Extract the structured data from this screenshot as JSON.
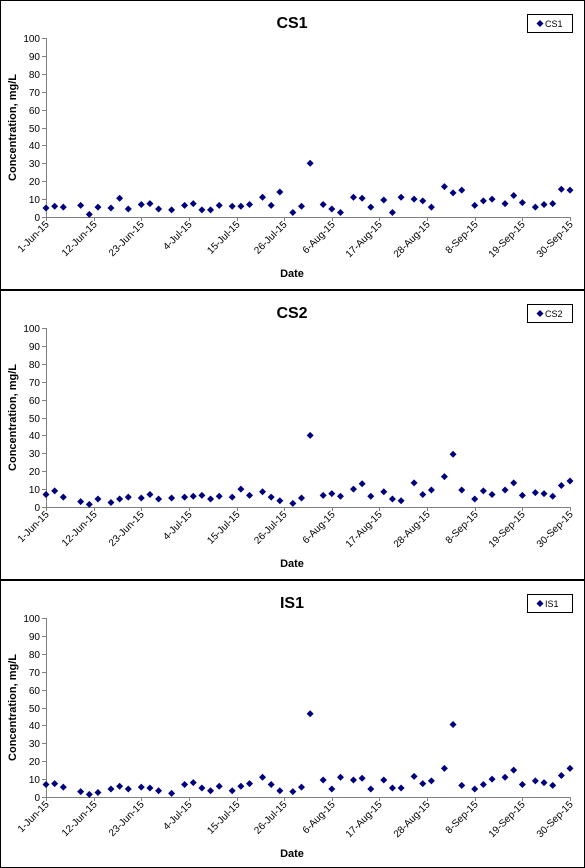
{
  "colors": {
    "marker": "#00007F",
    "frame": "#000000",
    "axis": "#808080"
  },
  "chart_data": [
    {
      "type": "scatter",
      "title": "CS1",
      "xlabel": "Date",
      "ylabel": "Concentration, mg/L",
      "legend": {
        "label": "CS1",
        "placement": "top-right"
      },
      "xlim": [
        "2015-06-01",
        "2015-09-30"
      ],
      "ylim": [
        0,
        100
      ],
      "y_ticks": [
        "0",
        "10",
        "20",
        "30",
        "40",
        "50",
        "60",
        "70",
        "80",
        "90",
        "100"
      ],
      "x_ticks": [
        "1-Jun-15",
        "12-Jun-15",
        "23-Jun-15",
        "4-Jul-15",
        "15-Jul-15",
        "26-Jul-15",
        "6-Aug-15",
        "17-Aug-15",
        "28-Aug-15",
        "8-Sep-15",
        "19-Sep-15",
        "30-Sep-15"
      ],
      "grid": false,
      "series": [
        {
          "name": "CS1",
          "x": [
            "2015-06-01",
            "2015-06-03",
            "2015-06-05",
            "2015-06-09",
            "2015-06-11",
            "2015-06-13",
            "2015-06-16",
            "2015-06-18",
            "2015-06-20",
            "2015-06-23",
            "2015-06-25",
            "2015-06-27",
            "2015-06-30",
            "2015-07-03",
            "2015-07-05",
            "2015-07-07",
            "2015-07-09",
            "2015-07-11",
            "2015-07-14",
            "2015-07-16",
            "2015-07-18",
            "2015-07-21",
            "2015-07-23",
            "2015-07-25",
            "2015-07-28",
            "2015-07-30",
            "2015-08-01",
            "2015-08-04",
            "2015-08-06",
            "2015-08-08",
            "2015-08-11",
            "2015-08-13",
            "2015-08-15",
            "2015-08-18",
            "2015-08-20",
            "2015-08-22",
            "2015-08-25",
            "2015-08-27",
            "2015-08-29",
            "2015-09-01",
            "2015-09-03",
            "2015-09-05",
            "2015-09-08",
            "2015-09-10",
            "2015-09-12",
            "2015-09-15",
            "2015-09-17",
            "2015-09-19",
            "2015-09-22",
            "2015-09-24",
            "2015-09-26",
            "2015-09-28",
            "2015-09-30"
          ],
          "y": [
            5,
            6,
            5.5,
            6.5,
            1.5,
            5.5,
            5,
            10.5,
            4.5,
            7,
            7.5,
            4.5,
            4,
            6.5,
            7.5,
            4,
            4,
            6.5,
            6,
            6,
            7,
            11,
            6.5,
            14,
            2.5,
            6,
            30,
            7,
            4.5,
            2.5,
            11,
            10.5,
            5.5,
            9.5,
            2.5,
            11,
            10,
            9,
            5.5,
            17,
            13.5,
            15,
            6.5,
            9,
            10,
            7.5,
            12,
            8,
            5.5,
            7,
            7.5,
            15.5,
            15
          ]
        }
      ]
    },
    {
      "type": "scatter",
      "title": "CS2",
      "xlabel": "Date",
      "ylabel": "Concentration, mg/L",
      "legend": {
        "label": "CS2",
        "placement": "top-right"
      },
      "xlim": [
        "2015-06-01",
        "2015-09-30"
      ],
      "ylim": [
        0,
        100
      ],
      "y_ticks": [
        "0",
        "10",
        "20",
        "30",
        "40",
        "50",
        "60",
        "70",
        "80",
        "90",
        "100"
      ],
      "x_ticks": [
        "1-Jun-15",
        "12-Jun-15",
        "23-Jun-15",
        "4-Jul-15",
        "15-Jul-15",
        "26-Jul-15",
        "6-Aug-15",
        "17-Aug-15",
        "28-Aug-15",
        "8-Sep-15",
        "19-Sep-15",
        "30-Sep-15"
      ],
      "grid": false,
      "series": [
        {
          "name": "CS2",
          "x": [
            "2015-06-01",
            "2015-06-03",
            "2015-06-05",
            "2015-06-09",
            "2015-06-11",
            "2015-06-13",
            "2015-06-16",
            "2015-06-18",
            "2015-06-20",
            "2015-06-23",
            "2015-06-25",
            "2015-06-27",
            "2015-06-30",
            "2015-07-03",
            "2015-07-05",
            "2015-07-07",
            "2015-07-09",
            "2015-07-11",
            "2015-07-14",
            "2015-07-16",
            "2015-07-18",
            "2015-07-21",
            "2015-07-23",
            "2015-07-25",
            "2015-07-28",
            "2015-07-30",
            "2015-08-01",
            "2015-08-04",
            "2015-08-06",
            "2015-08-08",
            "2015-08-11",
            "2015-08-13",
            "2015-08-15",
            "2015-08-18",
            "2015-08-20",
            "2015-08-22",
            "2015-08-25",
            "2015-08-27",
            "2015-08-29",
            "2015-09-01",
            "2015-09-03",
            "2015-09-05",
            "2015-09-08",
            "2015-09-10",
            "2015-09-12",
            "2015-09-15",
            "2015-09-17",
            "2015-09-19",
            "2015-09-22",
            "2015-09-24",
            "2015-09-26",
            "2015-09-28",
            "2015-09-30"
          ],
          "y": [
            7,
            9,
            5.5,
            3,
            1.5,
            4.5,
            2.5,
            4.5,
            5.5,
            5,
            7,
            4.5,
            5,
            5.5,
            6,
            6.5,
            4.5,
            6,
            5.5,
            10,
            6.5,
            8.5,
            5.5,
            3.5,
            2,
            5,
            40,
            6.5,
            7.5,
            6,
            10,
            13,
            6,
            8.5,
            4.5,
            3.5,
            13.5,
            7,
            9.5,
            17,
            29.5,
            9.5,
            4.5,
            9,
            7,
            9.5,
            13.5,
            6.5,
            8,
            7.5,
            6,
            12,
            14.5
          ]
        }
      ]
    },
    {
      "type": "scatter",
      "title": "IS1",
      "xlabel": "Date",
      "ylabel": "Concentration, mg/L",
      "legend": {
        "label": "IS1",
        "placement": "top-right"
      },
      "xlim": [
        "2015-06-01",
        "2015-09-30"
      ],
      "ylim": [
        0,
        100
      ],
      "y_ticks": [
        "0",
        "10",
        "20",
        "30",
        "40",
        "50",
        "60",
        "70",
        "80",
        "90",
        "100"
      ],
      "x_ticks": [
        "1-Jun-15",
        "12-Jun-15",
        "23-Jun-15",
        "4-Jul-15",
        "15-Jul-15",
        "26-Jul-15",
        "6-Aug-15",
        "17-Aug-15",
        "28-Aug-15",
        "8-Sep-15",
        "19-Sep-15",
        "30-Sep-15"
      ],
      "grid": false,
      "series": [
        {
          "name": "IS1",
          "x": [
            "2015-06-01",
            "2015-06-03",
            "2015-06-05",
            "2015-06-09",
            "2015-06-11",
            "2015-06-13",
            "2015-06-16",
            "2015-06-18",
            "2015-06-20",
            "2015-06-23",
            "2015-06-25",
            "2015-06-27",
            "2015-06-30",
            "2015-07-03",
            "2015-07-05",
            "2015-07-07",
            "2015-07-09",
            "2015-07-11",
            "2015-07-14",
            "2015-07-16",
            "2015-07-18",
            "2015-07-21",
            "2015-07-23",
            "2015-07-25",
            "2015-07-28",
            "2015-07-30",
            "2015-08-01",
            "2015-08-04",
            "2015-08-06",
            "2015-08-08",
            "2015-08-11",
            "2015-08-13",
            "2015-08-15",
            "2015-08-18",
            "2015-08-20",
            "2015-08-22",
            "2015-08-25",
            "2015-08-27",
            "2015-08-29",
            "2015-09-01",
            "2015-09-03",
            "2015-09-05",
            "2015-09-08",
            "2015-09-10",
            "2015-09-12",
            "2015-09-15",
            "2015-09-17",
            "2015-09-19",
            "2015-09-22",
            "2015-09-24",
            "2015-09-26",
            "2015-09-28",
            "2015-09-30"
          ],
          "y": [
            7,
            7.5,
            5.5,
            3,
            1.5,
            2.5,
            4.5,
            6,
            4.5,
            5.5,
            5,
            3.5,
            2,
            7,
            8,
            5,
            3.5,
            6,
            3.5,
            6,
            7.5,
            11,
            7,
            3.5,
            3,
            5.5,
            46.5,
            9.5,
            4.5,
            11,
            9.5,
            10.5,
            4.5,
            9.5,
            5,
            5,
            11.5,
            7.5,
            9,
            16,
            40.5,
            6.5,
            4.5,
            7,
            10,
            11,
            15,
            7,
            9,
            8,
            6.5,
            12,
            16
          ]
        }
      ]
    }
  ]
}
